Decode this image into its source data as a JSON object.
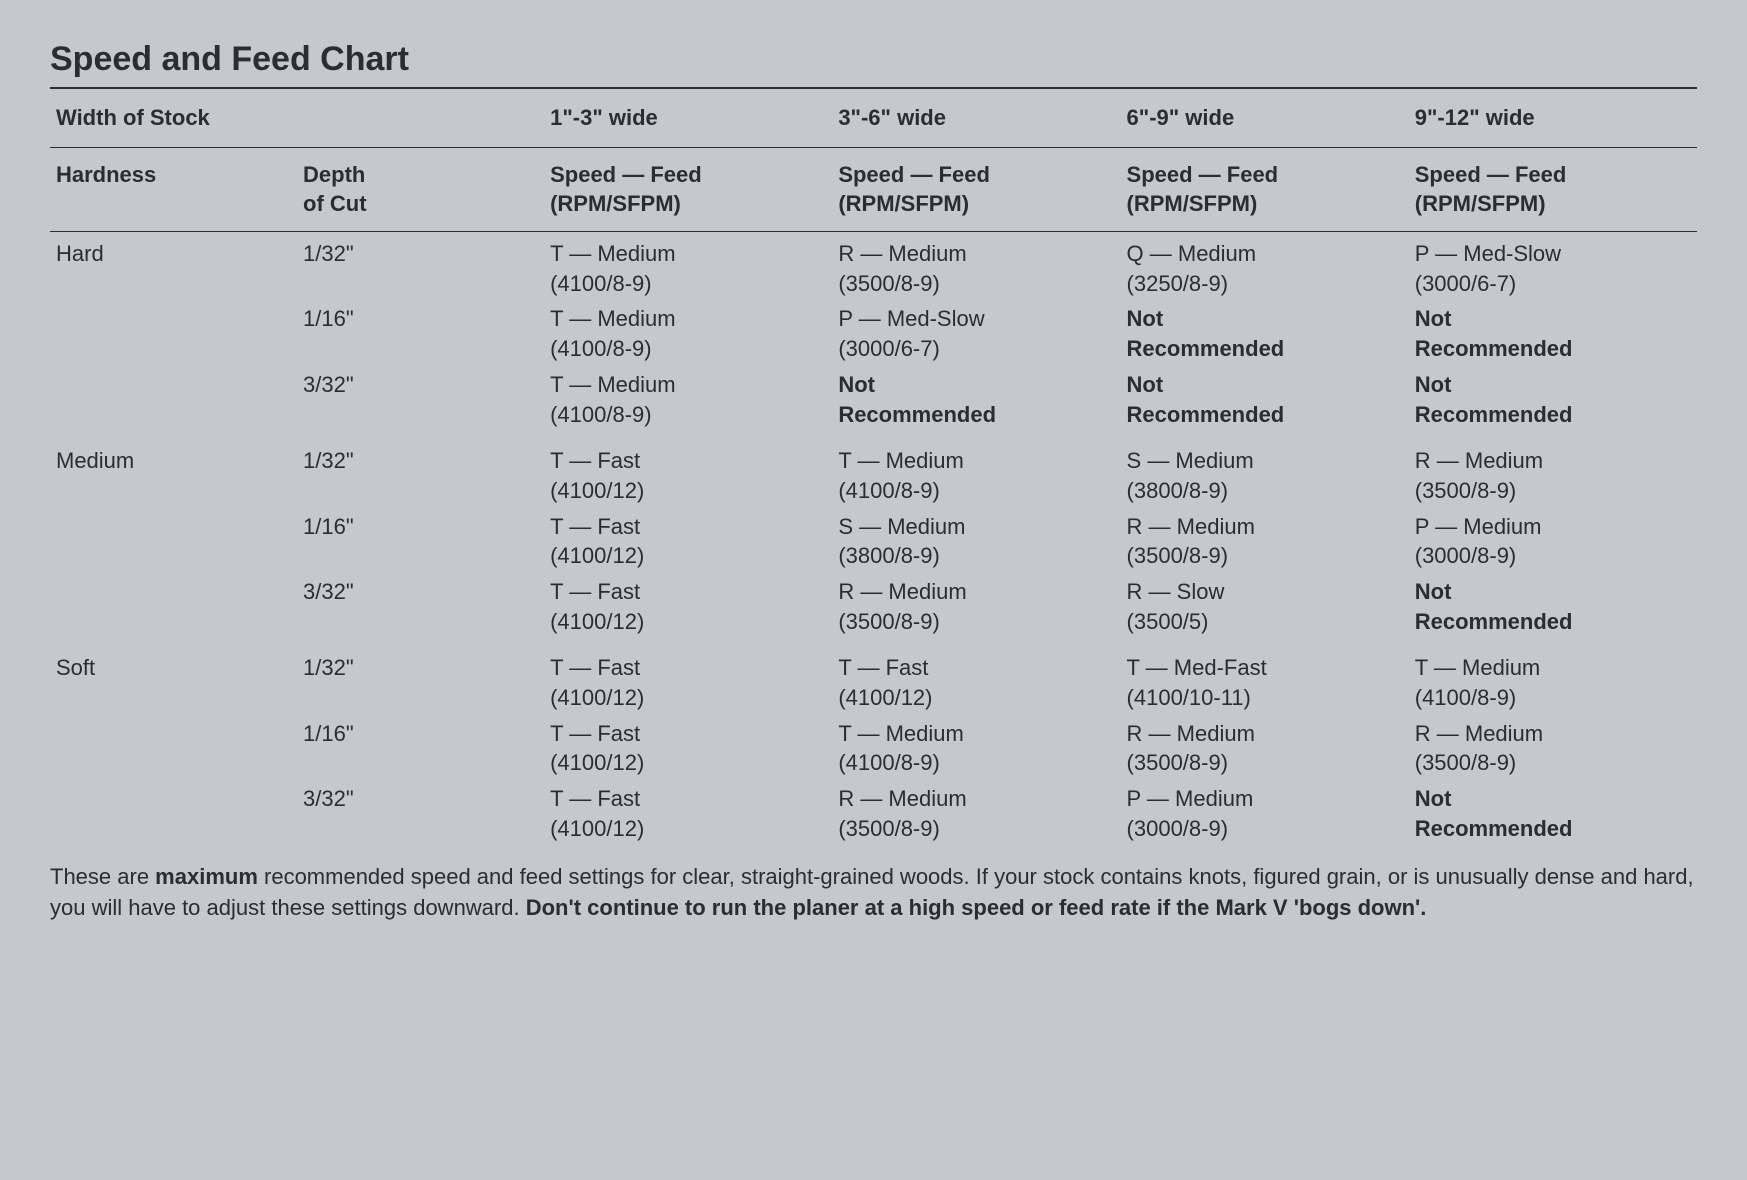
{
  "title": "Speed and Feed Chart",
  "headers": {
    "width_of_stock": "Width of Stock",
    "widths": [
      "1\"-3\" wide",
      "3\"-6\" wide",
      "6\"-9\" wide",
      "9\"-12\" wide"
    ],
    "hardness": "Hardness",
    "depth_of_cut": "Depth\nof Cut",
    "speed_feed": "Speed — Feed\n(RPM/SFPM)"
  },
  "groups": [
    {
      "hardness": "Hard",
      "rows": [
        {
          "depth": "1/32\"",
          "cells": [
            {
              "l1": "T — Medium",
              "l2": "(4100/8-9)"
            },
            {
              "l1": "R — Medium",
              "l2": "(3500/8-9)"
            },
            {
              "l1": "Q — Medium",
              "l2": "(3250/8-9)"
            },
            {
              "l1": "P — Med-Slow",
              "l2": "(3000/6-7)"
            }
          ]
        },
        {
          "depth": "1/16\"",
          "cells": [
            {
              "l1": "T — Medium",
              "l2": "(4100/8-9)"
            },
            {
              "l1": "P — Med-Slow",
              "l2": "(3000/6-7)"
            },
            {
              "l1": "Not",
              "l2": "Recommended",
              "nr": true
            },
            {
              "l1": "Not",
              "l2": "Recommended",
              "nr": true
            }
          ]
        },
        {
          "depth": "3/32\"",
          "cells": [
            {
              "l1": "T — Medium",
              "l2": "(4100/8-9)"
            },
            {
              "l1": "Not",
              "l2": "Recommended",
              "nr": true
            },
            {
              "l1": "Not",
              "l2": "Recommended",
              "nr": true
            },
            {
              "l1": "Not",
              "l2": "Recommended",
              "nr": true
            }
          ]
        }
      ]
    },
    {
      "hardness": "Medium",
      "rows": [
        {
          "depth": "1/32\"",
          "cells": [
            {
              "l1": "T — Fast",
              "l2": "(4100/12)"
            },
            {
              "l1": "T — Medium",
              "l2": "(4100/8-9)"
            },
            {
              "l1": "S — Medium",
              "l2": "(3800/8-9)"
            },
            {
              "l1": "R — Medium",
              "l2": "(3500/8-9)"
            }
          ]
        },
        {
          "depth": "1/16\"",
          "cells": [
            {
              "l1": "T — Fast",
              "l2": "(4100/12)"
            },
            {
              "l1": "S — Medium",
              "l2": "(3800/8-9)"
            },
            {
              "l1": "R — Medium",
              "l2": "(3500/8-9)"
            },
            {
              "l1": "P — Medium",
              "l2": "(3000/8-9)"
            }
          ]
        },
        {
          "depth": "3/32\"",
          "cells": [
            {
              "l1": "T — Fast",
              "l2": "(4100/12)"
            },
            {
              "l1": "R — Medium",
              "l2": "(3500/8-9)"
            },
            {
              "l1": "R — Slow",
              "l2": "(3500/5)"
            },
            {
              "l1": "Not",
              "l2": "Recommended",
              "nr": true
            }
          ]
        }
      ]
    },
    {
      "hardness": "Soft",
      "rows": [
        {
          "depth": "1/32\"",
          "cells": [
            {
              "l1": "T — Fast",
              "l2": "(4100/12)"
            },
            {
              "l1": "T — Fast",
              "l2": "(4100/12)"
            },
            {
              "l1": "T — Med-Fast",
              "l2": "(4100/10-11)"
            },
            {
              "l1": "T — Medium",
              "l2": "(4100/8-9)"
            }
          ]
        },
        {
          "depth": "1/16\"",
          "cells": [
            {
              "l1": "T — Fast",
              "l2": "(4100/12)"
            },
            {
              "l1": "T — Medium",
              "l2": "(4100/8-9)"
            },
            {
              "l1": "R — Medium",
              "l2": "(3500/8-9)"
            },
            {
              "l1": "R — Medium",
              "l2": "(3500/8-9)"
            }
          ]
        },
        {
          "depth": "3/32\"",
          "cells": [
            {
              "l1": "T — Fast",
              "l2": "(4100/12)"
            },
            {
              "l1": "R — Medium",
              "l2": "(3500/8-9)"
            },
            {
              "l1": "P — Medium",
              "l2": "(3000/8-9)"
            },
            {
              "l1": "Not",
              "l2": "Recommended",
              "nr": true
            }
          ]
        }
      ]
    }
  ],
  "footer": {
    "part1": "These are ",
    "bold1": "maximum",
    "part2": " recommended speed and feed settings for clear, straight-grained woods. If your stock contains knots, figured grain, or is unusually dense and hard, you will have to adjust these settings downward. ",
    "bold2": "Don't continue to run the planer at a high speed or feed rate if the Mark V 'bogs down'."
  },
  "style": {
    "background_color": "#c5c8ce",
    "text_color": "#2a2d34",
    "rule_color": "#2a2d34",
    "title_fontsize": 34,
    "body_fontsize": 22,
    "font_family": "Helvetica, Arial, sans-serif"
  }
}
